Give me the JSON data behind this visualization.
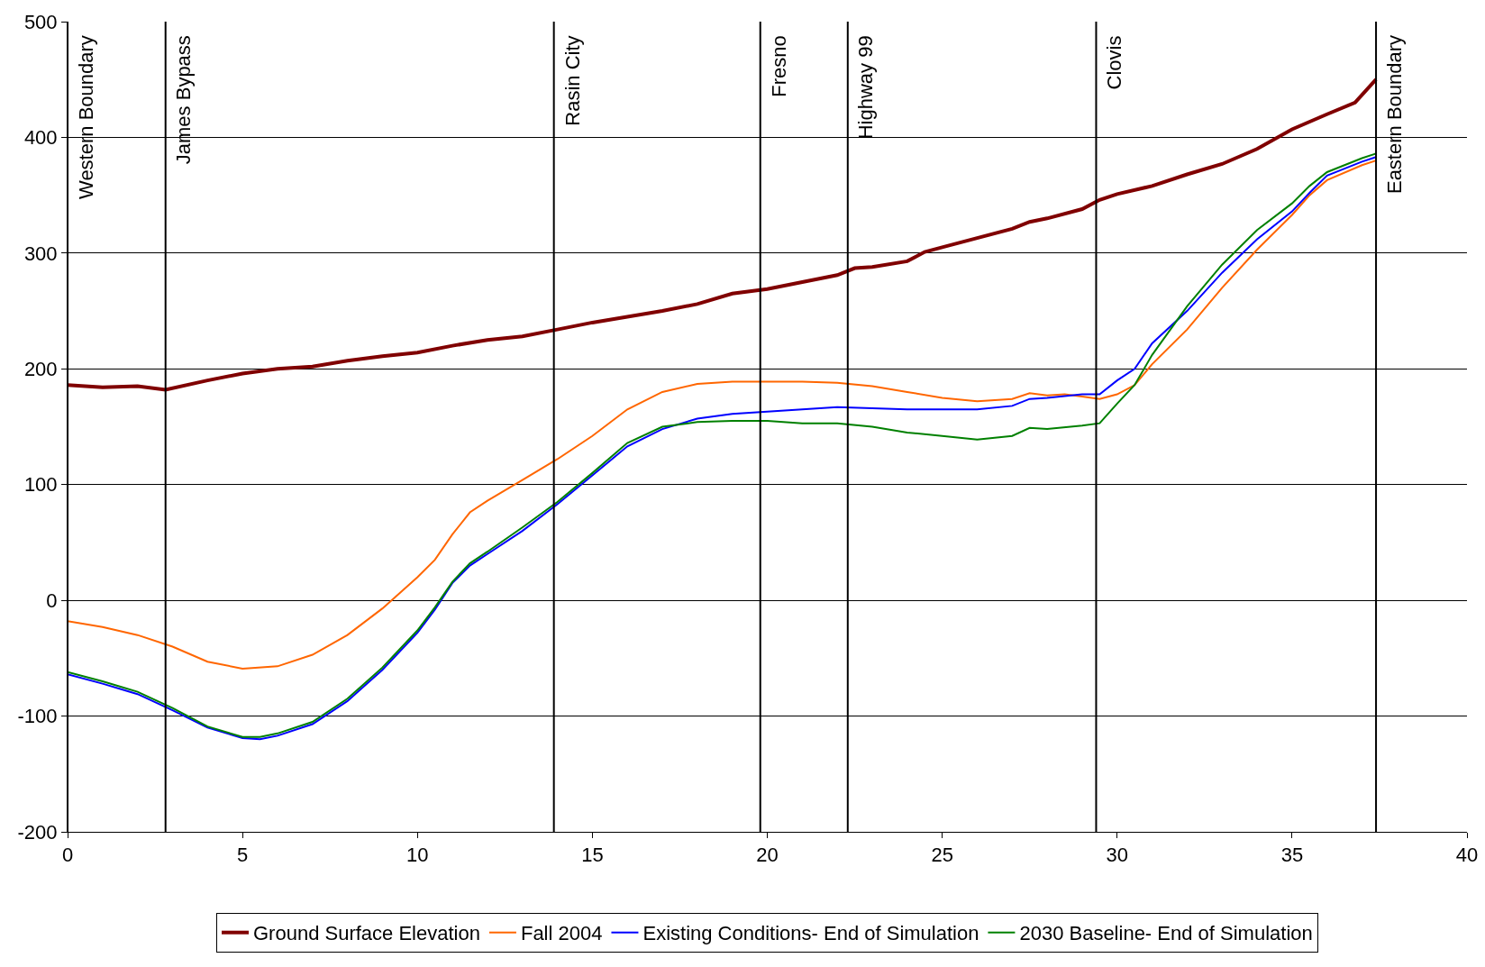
{
  "chart_data": {
    "type": "line",
    "xlim": [
      0,
      40
    ],
    "xticks": [
      0,
      5,
      10,
      15,
      20,
      25,
      30,
      35,
      40
    ],
    "ylim": [
      -200,
      500
    ],
    "yticks": [
      -200,
      -100,
      0,
      100,
      200,
      300,
      400,
      500
    ],
    "grid": "y",
    "legend": "bottom",
    "marker": "none",
    "line_style": "solid",
    "series": [
      {
        "name": "Ground Surface Elevation",
        "color": "#800000",
        "x": [
          0,
          1,
          2,
          2.8,
          4,
          5,
          6,
          7,
          8,
          9,
          10,
          11,
          12,
          13,
          14,
          15,
          16,
          17,
          18,
          19,
          20,
          21,
          22,
          22.5,
          23,
          24,
          24.5,
          25,
          26,
          27,
          27.5,
          28,
          29,
          29.5,
          30,
          31,
          32,
          33,
          34,
          35,
          36,
          36.8,
          37.4
        ],
        "values": [
          186,
          184,
          185,
          182,
          190,
          196,
          200,
          202,
          207,
          211,
          214,
          220,
          225,
          228,
          234,
          240,
          245,
          250,
          256,
          265,
          269,
          275,
          281,
          287,
          288,
          293,
          301,
          305,
          313,
          321,
          327,
          330,
          338,
          346,
          351,
          358,
          368,
          377,
          390,
          407,
          420,
          430,
          450
        ]
      },
      {
        "name": "Fall 2004",
        "color": "#ff6600",
        "x": [
          0,
          1,
          2,
          3,
          4,
          5,
          6,
          7,
          8,
          9,
          10,
          10.5,
          11,
          11.5,
          12,
          13,
          14,
          15,
          16,
          17,
          18,
          19,
          20,
          21,
          22,
          23,
          24,
          25,
          26,
          27,
          27.5,
          28,
          28.5,
          29,
          29.5,
          30,
          30.5,
          31,
          32,
          33,
          34,
          35,
          35.5,
          36,
          37,
          37.4
        ],
        "values": [
          -18,
          -23,
          -30,
          -40,
          -53,
          -59,
          -57,
          -47,
          -30,
          -7,
          20,
          35,
          57,
          76,
          86,
          104,
          122,
          142,
          165,
          180,
          187,
          189,
          189,
          189,
          188,
          185,
          180,
          175,
          172,
          174,
          179,
          177,
          178,
          176,
          174,
          178,
          186,
          204,
          234,
          270,
          303,
          333,
          350,
          363,
          376,
          380
        ]
      },
      {
        "name": "Existing Conditions- End of Simulation",
        "color": "#0000ff",
        "x": [
          0,
          1,
          2,
          3,
          4,
          5,
          5.5,
          6,
          7,
          8,
          9,
          10,
          10.5,
          11,
          11.5,
          12,
          13,
          14,
          15,
          16,
          17,
          18,
          19,
          20,
          21,
          22,
          23,
          24,
          25,
          26,
          27,
          27.5,
          28,
          29,
          29.5,
          30,
          30.5,
          31,
          32,
          33,
          34,
          35,
          35.5,
          36,
          37,
          37.4
        ],
        "values": [
          -64,
          -72,
          -81,
          -95,
          -110,
          -119,
          -120,
          -117,
          -107,
          -87,
          -60,
          -28,
          -8,
          15,
          30,
          40,
          60,
          83,
          108,
          133,
          148,
          157,
          161,
          163,
          165,
          167,
          166,
          165,
          165,
          165,
          168,
          174,
          175,
          178,
          178,
          190,
          200,
          222,
          250,
          283,
          312,
          336,
          352,
          367,
          379,
          383
        ]
      },
      {
        "name": "2030 Baseline- End of Simulation",
        "color": "#008000",
        "x": [
          0,
          1,
          2,
          3,
          4,
          5,
          5.5,
          6,
          7,
          8,
          9,
          10,
          10.5,
          11,
          11.5,
          12,
          13,
          14,
          15,
          16,
          17,
          18,
          19,
          20,
          21,
          22,
          23,
          24,
          25,
          26,
          27,
          27.5,
          28,
          29,
          29.5,
          30,
          30.5,
          31,
          32,
          33,
          34,
          35,
          35.5,
          36,
          37,
          37.4
        ],
        "values": [
          -62,
          -70,
          -79,
          -93,
          -109,
          -118,
          -118,
          -115,
          -105,
          -85,
          -58,
          -26,
          -6,
          16,
          32,
          42,
          63,
          85,
          110,
          136,
          150,
          154,
          155,
          155,
          153,
          153,
          150,
          145,
          142,
          139,
          142,
          149,
          148,
          151,
          153,
          170,
          186,
          212,
          254,
          290,
          320,
          343,
          358,
          370,
          382,
          386
        ]
      }
    ],
    "ref_lines": [
      {
        "axis": "x",
        "value": 0,
        "label": "Western Boundary",
        "color": "#000000"
      },
      {
        "axis": "x",
        "value": 2.8,
        "label": "James Bypass",
        "color": "#000000"
      },
      {
        "axis": "x",
        "value": 13.9,
        "label": "Rasin City",
        "color": "#000000"
      },
      {
        "axis": "x",
        "value": 19.8,
        "label": "Fresno",
        "color": "#000000"
      },
      {
        "axis": "x",
        "value": 22.3,
        "label": "Highway 99",
        "color": "#000000"
      },
      {
        "axis": "x",
        "value": 29.4,
        "label": "Clovis",
        "color": "#000000"
      },
      {
        "axis": "x",
        "value": 37.4,
        "label": "Eastern Boundary",
        "color": "#000000"
      }
    ]
  }
}
